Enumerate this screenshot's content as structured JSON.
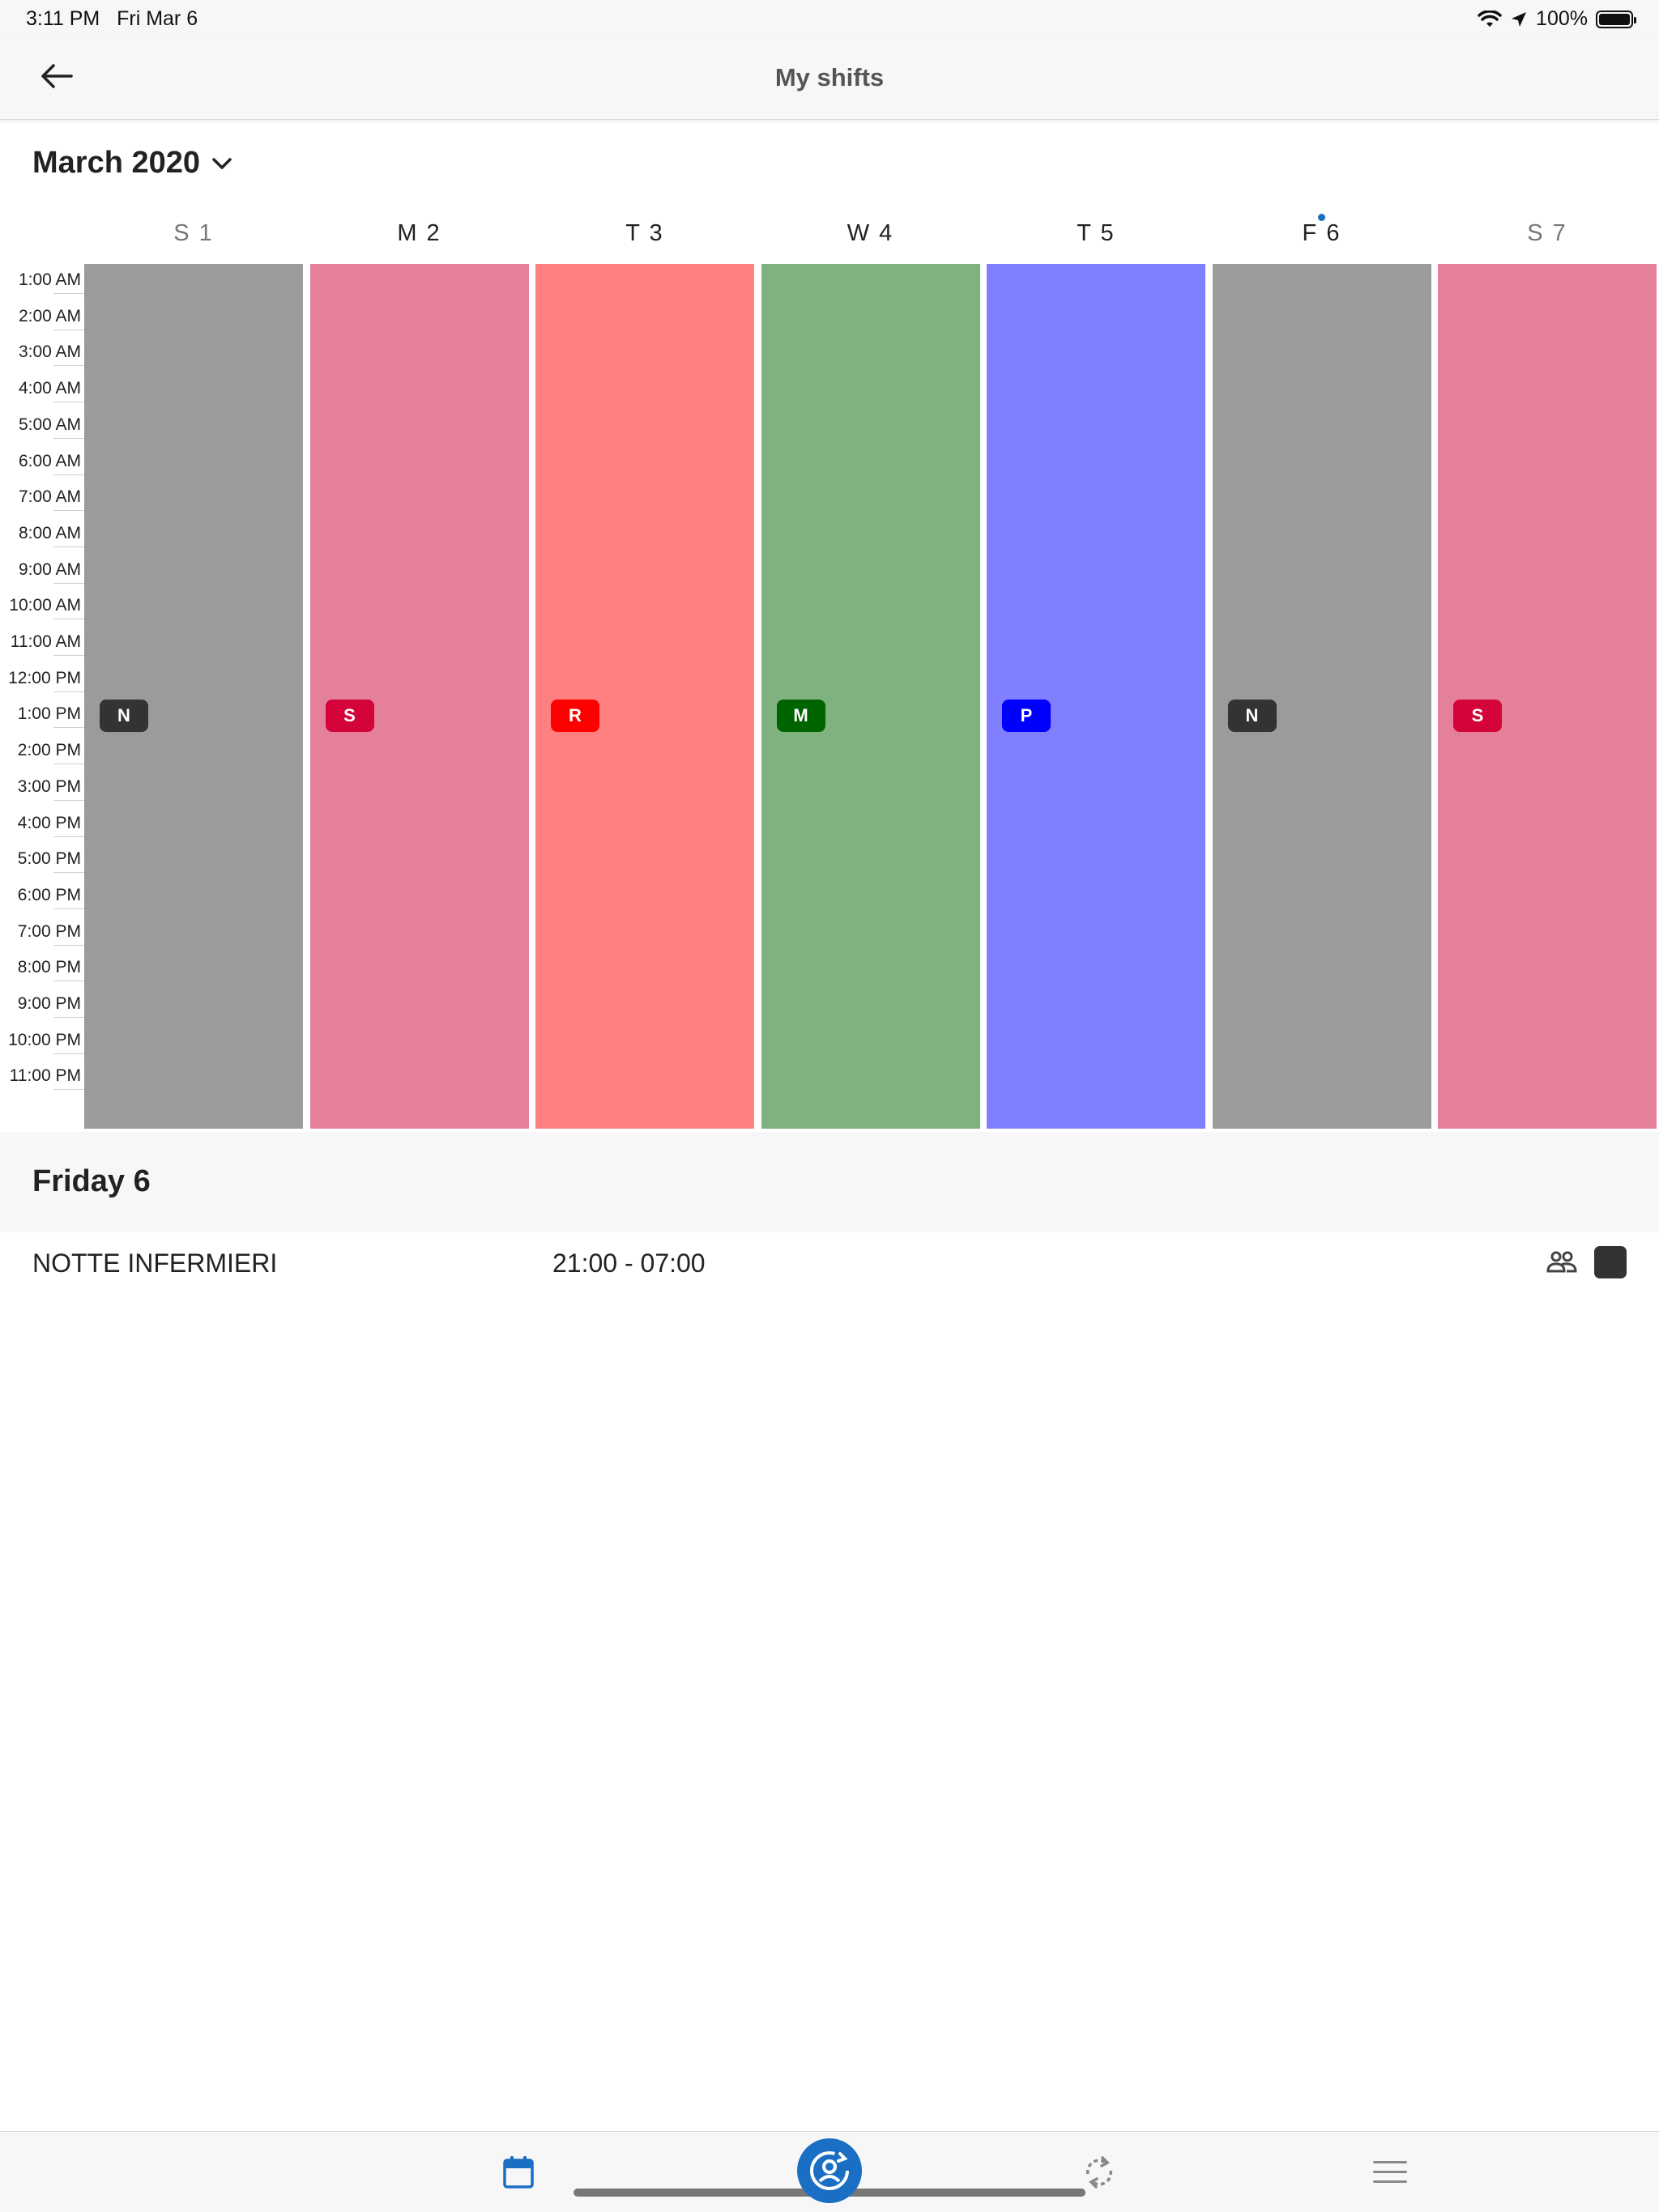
{
  "status_bar": {
    "time": "3:11 PM",
    "date": "Fri Mar 6",
    "battery": "100%",
    "icons": [
      "wifi-icon",
      "location-arrow-icon",
      "battery-icon"
    ]
  },
  "nav": {
    "title": "My shifts",
    "back_icon": "arrow-left-icon"
  },
  "month": {
    "label": "March 2020",
    "dropdown_icon": "chevron-down-icon"
  },
  "week": {
    "days": [
      {
        "label": "S 1",
        "color": "#9b9b9b",
        "chip": "N",
        "chip_color": "#333333",
        "weekend": true
      },
      {
        "label": "M 2",
        "color": "#e4809a",
        "chip": "S",
        "chip_color": "#d4043a",
        "weekend": false
      },
      {
        "label": "T 3",
        "color": "#ff8080",
        "chip": "R",
        "chip_color": "#ff0000",
        "weekend": false
      },
      {
        "label": "W 4",
        "color": "#80b27f",
        "chip": "M",
        "chip_color": "#006400",
        "weekend": false
      },
      {
        "label": "T 5",
        "color": "#807fff",
        "chip": "P",
        "chip_color": "#0000ff",
        "weekend": false
      },
      {
        "label": "F 6",
        "color": "#9b9b9b",
        "chip": "N",
        "chip_color": "#333333",
        "weekend": false,
        "today": true
      },
      {
        "label": "S 7",
        "color": "#e4809a",
        "chip": "S",
        "chip_color": "#d4043a",
        "weekend": true
      }
    ],
    "hours": [
      "1:00 AM",
      "2:00 AM",
      "3:00 AM",
      "4:00 AM",
      "5:00 AM",
      "6:00 AM",
      "7:00 AM",
      "8:00 AM",
      "9:00 AM",
      "10:00 AM",
      "11:00 AM",
      "12:00 PM",
      "1:00 PM",
      "2:00 PM",
      "3:00 PM",
      "4:00 PM",
      "5:00 PM",
      "6:00 PM",
      "7:00 PM",
      "8:00 PM",
      "9:00 PM",
      "10:00 PM",
      "11:00 PM"
    ]
  },
  "selected_day": {
    "title": "Friday 6",
    "shifts": [
      {
        "name": "NOTTE INFERMIERI",
        "time": "21:00 - 07:00",
        "color": "#333333",
        "icon": "people-icon"
      }
    ]
  },
  "tab_bar": {
    "items": [
      {
        "icon": "calendar-icon",
        "active": true
      },
      {
        "icon": "user-sync-icon",
        "active": false
      },
      {
        "icon": "swap-icon",
        "active": false
      },
      {
        "icon": "menu-icon",
        "active": false
      }
    ]
  },
  "colors": {
    "accent": "#1a6fc4",
    "header_bg": "#f7f7f7"
  }
}
